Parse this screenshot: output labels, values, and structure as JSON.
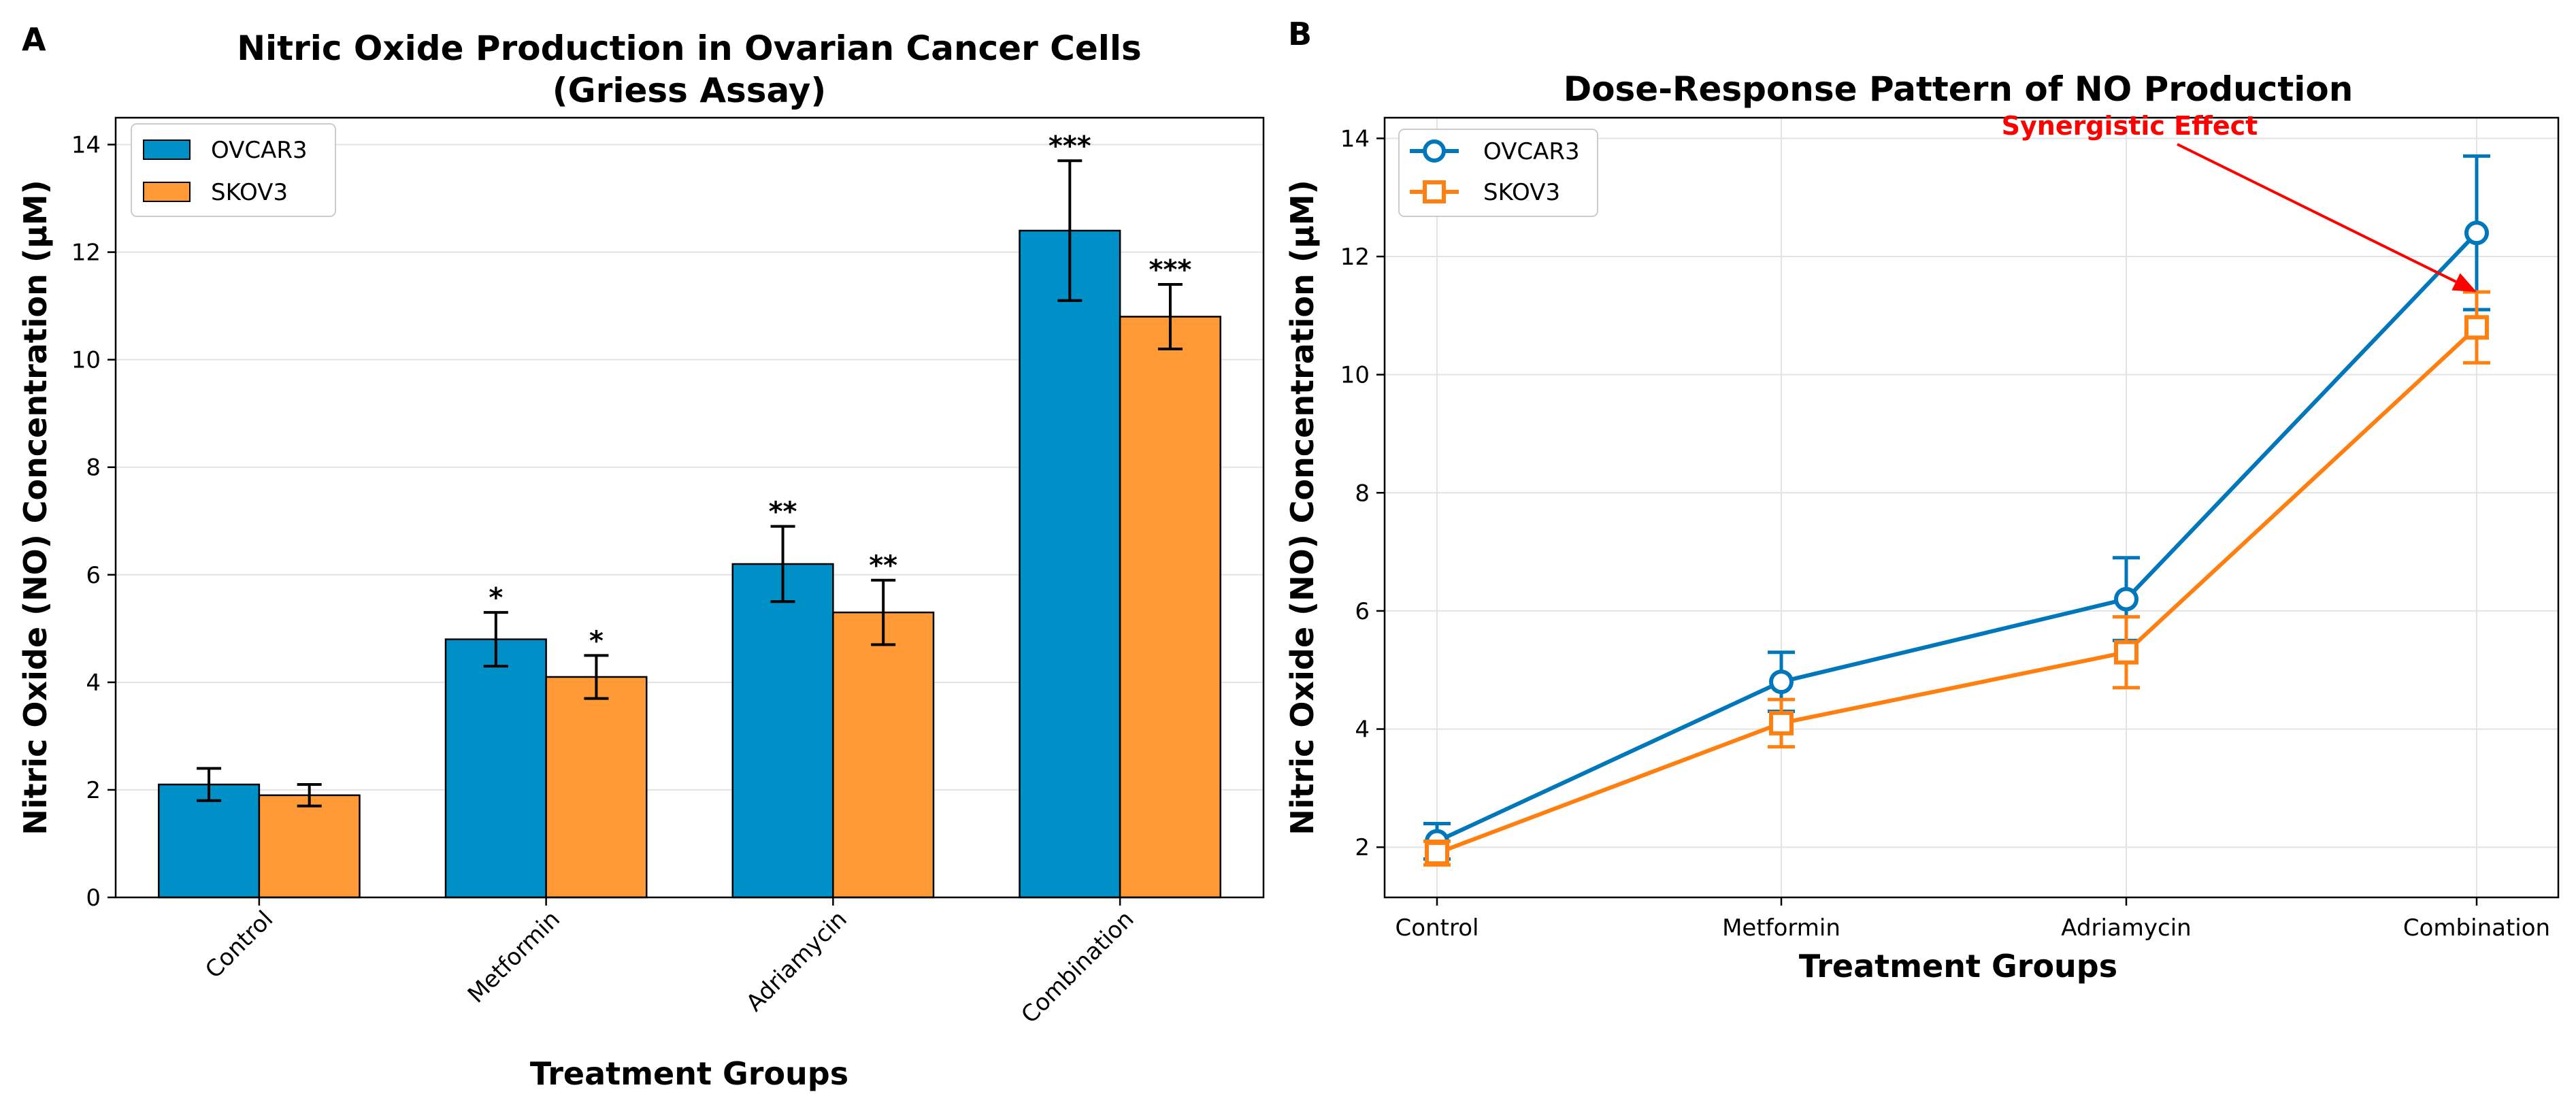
{
  "chart_data": [
    {
      "panel": "A",
      "type": "bar",
      "title": "Nitric Oxide Production in Ovarian Cancer Cells",
      "subtitle": "(Griess Assay)",
      "xlabel": "Treatment Groups",
      "ylabel": "Nitric Oxide (NO) Concentration (μM)",
      "categories": [
        "Control",
        "Metformin",
        "Adriamycin",
        "Combination"
      ],
      "series": [
        {
          "name": "OVCAR3",
          "color": "#0090c8",
          "values": [
            2.1,
            4.8,
            6.2,
            12.4
          ],
          "errors": [
            0.3,
            0.5,
            0.7,
            1.3
          ],
          "significance": [
            "",
            "*",
            "**",
            "***"
          ]
        },
        {
          "name": "SKOV3",
          "color": "#ff9a36",
          "values": [
            1.9,
            4.1,
            5.3,
            10.8
          ],
          "errors": [
            0.2,
            0.4,
            0.6,
            0.6
          ],
          "significance": [
            "",
            "*",
            "**",
            "***"
          ]
        }
      ],
      "ylim": [
        0,
        14.5
      ],
      "yticks": [
        0,
        2,
        4,
        6,
        8,
        10,
        12,
        14
      ],
      "grid": "y",
      "legend": "top-left"
    },
    {
      "panel": "B",
      "type": "line",
      "title": "Dose-Response Pattern of NO Production",
      "xlabel": "Treatment Groups",
      "ylabel": "Nitric Oxide (NO) Concentration (μM)",
      "categories": [
        "Control",
        "Metformin",
        "Adriamycin",
        "Combination"
      ],
      "series": [
        {
          "name": "OVCAR3",
          "color": "#0077bb",
          "marker": "circle",
          "values": [
            2.1,
            4.8,
            6.2,
            12.4
          ],
          "errors": [
            0.3,
            0.5,
            0.7,
            1.3
          ]
        },
        {
          "name": "SKOV3",
          "color": "#ff8010",
          "marker": "square",
          "values": [
            1.9,
            4.1,
            5.3,
            10.8
          ],
          "errors": [
            0.2,
            0.4,
            0.6,
            0.6
          ]
        }
      ],
      "ylim": [
        1.15,
        14.35
      ],
      "yticks": [
        2,
        4,
        6,
        8,
        10,
        12,
        14
      ],
      "grid": "both",
      "legend": "top-left",
      "annotation": {
        "text": "Synergistic Effect",
        "color": "#ff0000",
        "points_to": {
          "category": "Combination",
          "value": 11.4
        }
      }
    }
  ]
}
